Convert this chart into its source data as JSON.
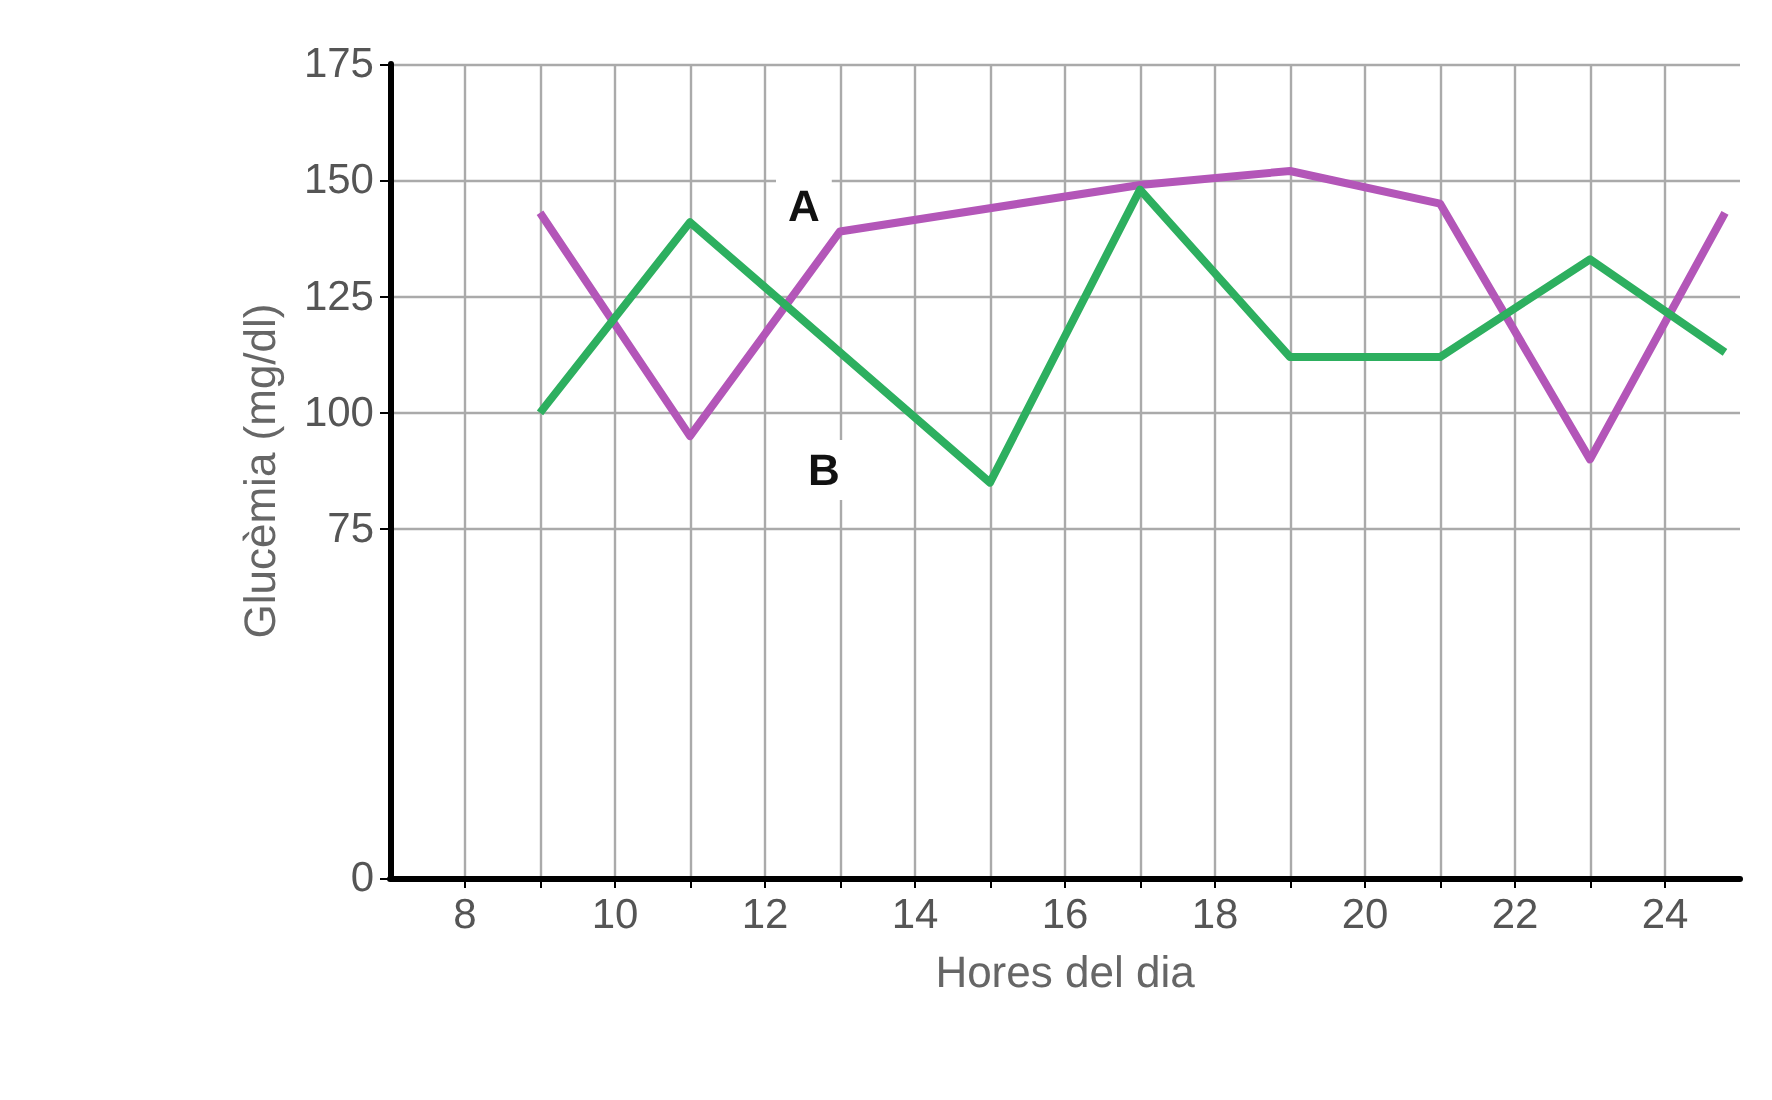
{
  "chart_data": {
    "type": "line",
    "xlabel": "Hores del dia",
    "ylabel": "Glucèmia (mg/dl)",
    "xlim": [
      7,
      25
    ],
    "xticks": [
      8,
      {
        "value": 9,
        "label": null
      },
      10,
      {
        "value": 11,
        "label": null
      },
      12,
      {
        "value": 13,
        "label": null
      },
      14,
      {
        "value": 15,
        "label": null
      },
      16,
      {
        "value": 17,
        "label": null
      },
      18,
      {
        "value": 19,
        "label": null
      },
      20,
      {
        "value": 21,
        "label": null
      },
      22,
      {
        "value": 23,
        "label": null
      },
      24
    ],
    "ylim": [
      0,
      175
    ],
    "yticks": [
      0,
      75,
      100,
      125,
      150,
      175
    ],
    "grid": true,
    "marker": "none",
    "line_style": "solid",
    "series": [
      {
        "name": "A",
        "color": "#b356b8",
        "x": [
          9,
          11,
          13,
          17,
          19,
          21,
          23,
          24.8
        ],
        "values": [
          143,
          95,
          139,
          149,
          152,
          145,
          90,
          143
        ]
      },
      {
        "name": "B",
        "color": "#2daf5f",
        "x": [
          9,
          11,
          15,
          17,
          19,
          21,
          23,
          24.8
        ],
        "values": [
          100,
          141,
          85,
          148,
          112,
          112,
          133,
          113
        ]
      }
    ]
  }
}
